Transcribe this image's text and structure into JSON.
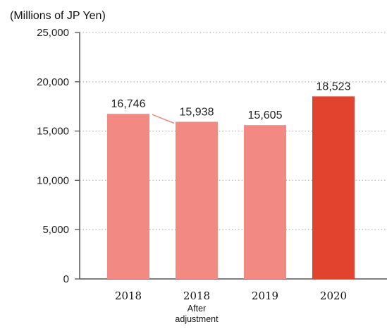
{
  "chart_data": {
    "type": "bar",
    "unit_label": "(Millions of JP Yen)",
    "categories": [
      "2018",
      "2018",
      "2019",
      "2020"
    ],
    "category_sublabels": [
      "",
      "After adjustment",
      "",
      ""
    ],
    "values": [
      16746,
      15938,
      15605,
      18523
    ],
    "value_labels": [
      "16,746",
      "15,938",
      "15,605",
      "18,523"
    ],
    "ylim": [
      0,
      25000
    ],
    "yticks": [
      0,
      5000,
      10000,
      15000,
      20000,
      25000
    ],
    "ytick_labels": [
      "0",
      "5,000",
      "10,000",
      "15,000",
      "20,000",
      "25,000"
    ],
    "grid": true,
    "colors": {
      "bar": "#f28a83",
      "highlight": "#e2432f",
      "axis": "#555555",
      "grid": "#b8b8b8",
      "connector": "#f28a83"
    },
    "highlight_index": 3,
    "connector_between": [
      0,
      1
    ]
  }
}
